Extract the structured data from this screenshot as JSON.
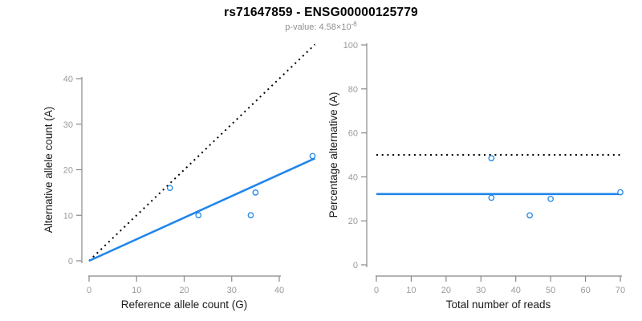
{
  "header": {
    "title": "rs71647859 - ENSG00000125779",
    "subtitle_prefix": "p-value: 4.58×10",
    "subtitle_exponent": "-8"
  },
  "colors": {
    "accent_blue": "#2186EB",
    "dotted_line": "#000000",
    "axis_line": "#888888",
    "tick_label": "#9b9b9b",
    "axis_title": "#1a1a1a",
    "title_color": "#000000",
    "subtitle_color": "#8f8f8f",
    "point_fill": "#ffffff"
  },
  "chart_data": [
    {
      "name": "allele-count-scatter",
      "type": "scatter",
      "title": "",
      "xlabel": "Reference allele count (G)",
      "ylabel": "Alternative allele count (A)",
      "xlim": [
        0,
        47.5
      ],
      "ylim": [
        0,
        47.5
      ],
      "xticks": [
        0,
        10,
        20,
        30,
        40
      ],
      "yticks": [
        0,
        10,
        20,
        30,
        40
      ],
      "grid": false,
      "legend": null,
      "points": [
        {
          "x": 17,
          "y": 16
        },
        {
          "x": 23,
          "y": 10
        },
        {
          "x": 34,
          "y": 10
        },
        {
          "x": 35,
          "y": 15
        },
        {
          "x": 47,
          "y": 23
        }
      ],
      "lines": [
        {
          "name": "identity-line",
          "style": "dotted",
          "color": "#000000",
          "x1": 0,
          "y1": 0,
          "x2": 47.5,
          "y2": 47.5
        },
        {
          "name": "fit-line",
          "style": "solid",
          "color": "#2186EB",
          "x1": 0,
          "y1": 0,
          "x2": 47.5,
          "y2": 22.5
        }
      ]
    },
    {
      "name": "percentage-scatter",
      "type": "scatter",
      "title": "",
      "xlabel": "Total number of reads",
      "ylabel": "Percentage alternative (A)",
      "xlim": [
        0,
        70.5
      ],
      "ylim": [
        0,
        100
      ],
      "xticks": [
        0,
        10,
        20,
        30,
        40,
        50,
        60,
        70
      ],
      "yticks": [
        0,
        20,
        40,
        60,
        80,
        100
      ],
      "grid": false,
      "legend": null,
      "points": [
        {
          "x": 33,
          "y": 48.5
        },
        {
          "x": 33,
          "y": 30.5
        },
        {
          "x": 44,
          "y": 22.5
        },
        {
          "x": 50,
          "y": 30
        },
        {
          "x": 70,
          "y": 33
        }
      ],
      "lines": [
        {
          "name": "expected-50-percent-line",
          "style": "dotted",
          "color": "#000000",
          "x1": 0,
          "y1": 50,
          "x2": 70.5,
          "y2": 50
        },
        {
          "name": "observed-percent-line",
          "style": "solid",
          "color": "#2186EB",
          "x1": 0,
          "y1": 32.2,
          "x2": 70.5,
          "y2": 32.2
        }
      ]
    }
  ]
}
